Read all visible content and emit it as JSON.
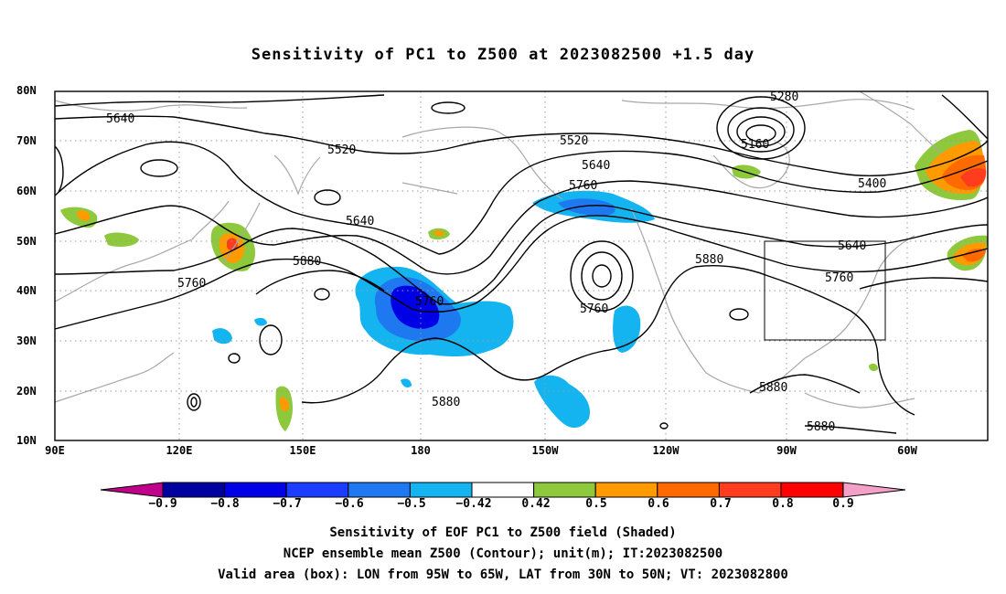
{
  "title": "Sensitivity of PC1 to Z500 at 2023082500 +1.5 day",
  "lat_labels": [
    "80N",
    "70N",
    "60N",
    "50N",
    "40N",
    "30N",
    "20N",
    "10N"
  ],
  "lon_labels": [
    "90E",
    "120E",
    "150E",
    "180",
    "150W",
    "120W",
    "90W",
    "60W"
  ],
  "contour_labels": [
    "5640",
    "5520",
    "5520",
    "5640",
    "5760",
    "5880",
    "5760",
    "5640",
    "5760",
    "5760",
    "5880",
    "5280",
    "5160",
    "5400",
    "5880",
    "5640",
    "5760",
    "5880",
    "5880"
  ],
  "colorbar": {
    "labels": [
      "−0.9",
      "−0.8",
      "−0.7",
      "−0.6",
      "−0.5",
      "−0.42",
      "0.42",
      "0.5",
      "0.6",
      "0.7",
      "0.8",
      "0.9"
    ],
    "colors": [
      "#0000a0",
      "#0000e6",
      "#1c3cff",
      "#1e78f0",
      "#14b4f0",
      "#ffffff",
      "#8ec83c",
      "#ff9a00",
      "#ff6a00",
      "#ff3c1e",
      "#ff0000"
    ],
    "low_extend_color": "#c0008a",
    "high_extend_color": "#f5a0c8"
  },
  "shading_colors": {
    "negative_weak": "#14b4f0",
    "negative_mid": "#1e78f0",
    "negative_strong": "#1c3cff",
    "negative_max": "#0000e6",
    "positive_weak": "#8ec83c",
    "positive_mid": "#ff9a00",
    "positive_strong": "#ff3c1e"
  },
  "captions": [
    "Sensitivity of EOF PC1 to Z500 field (Shaded)",
    "NCEP ensemble mean Z500 (Contour); unit(m); IT:2023082500",
    "Valid area (box): LON from 95W to 65W, LAT from 30N to 50N; VT: 2023082800"
  ]
}
